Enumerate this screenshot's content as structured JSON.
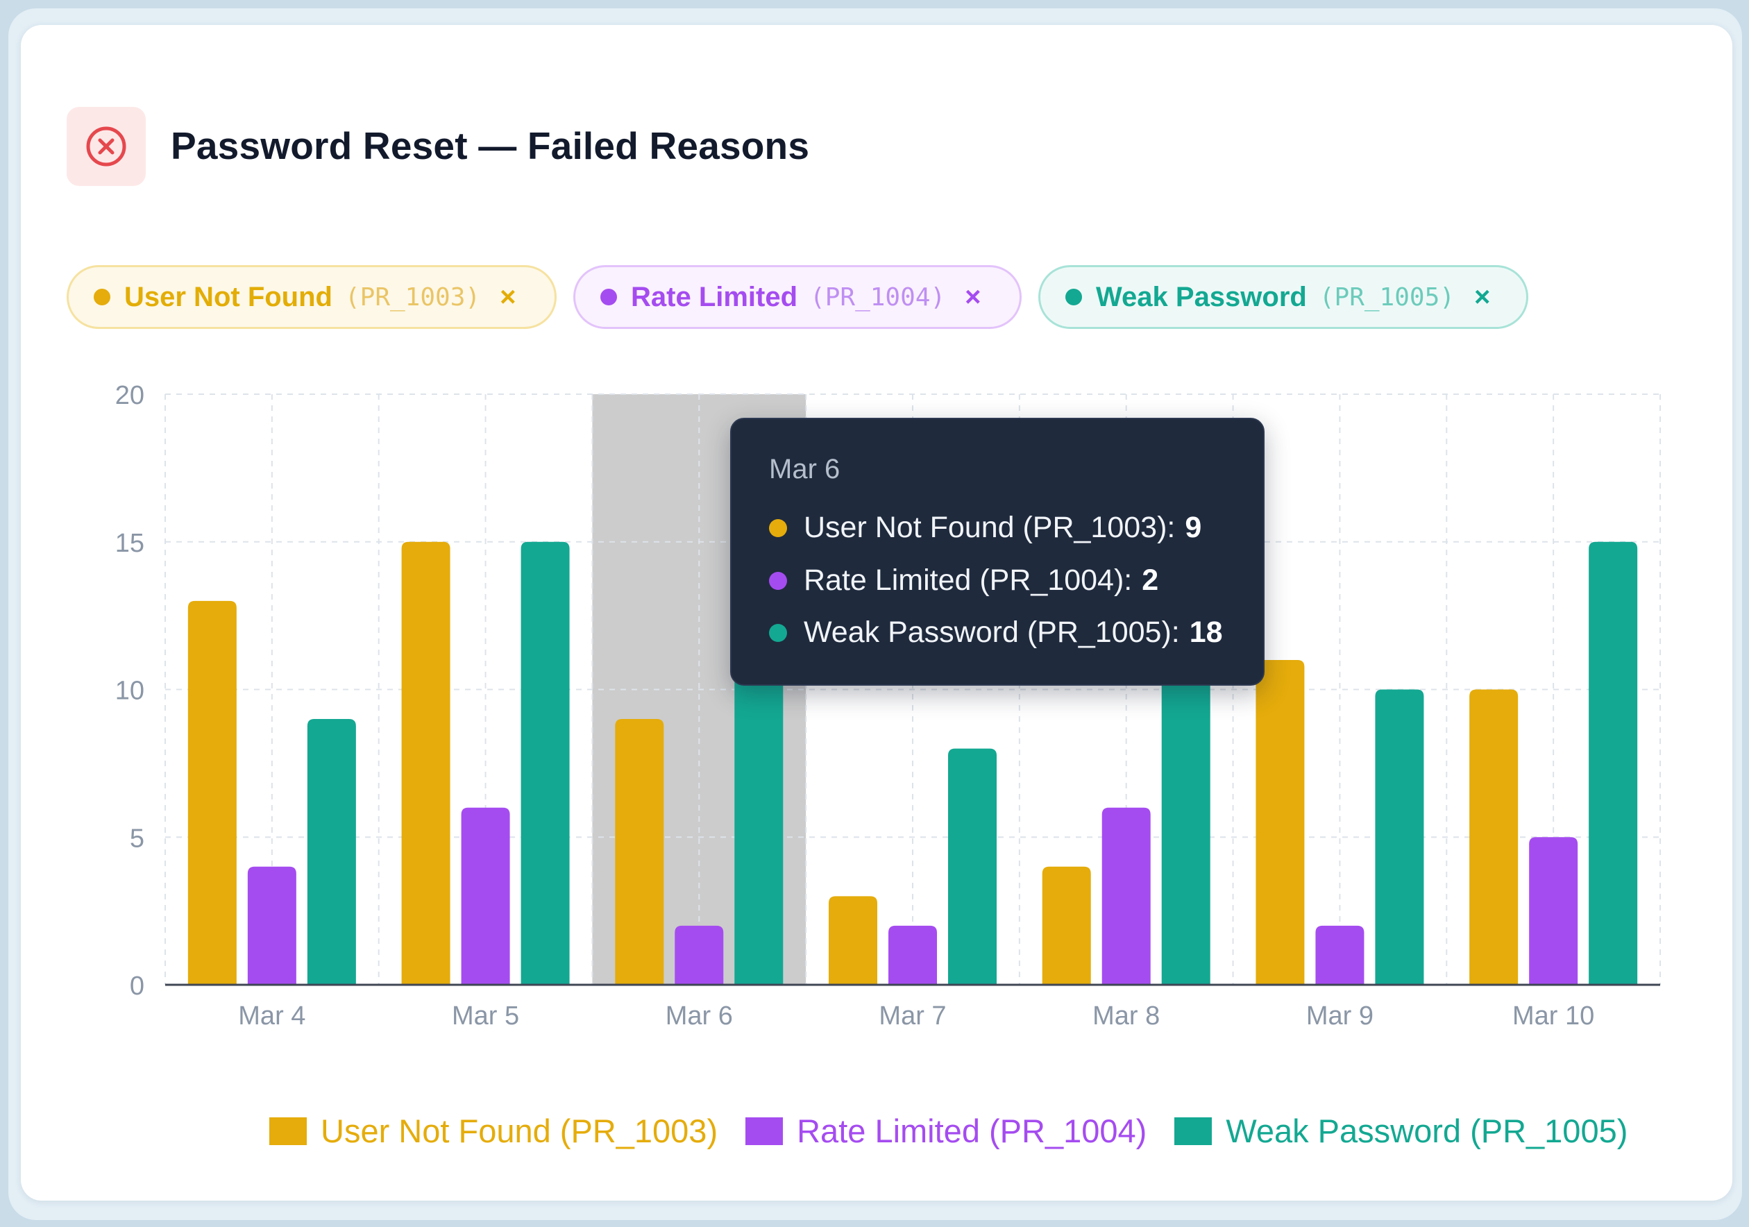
{
  "title": "Password Reset — Failed Reasons",
  "header_icon": "x-circle-icon",
  "filter_chips": [
    {
      "label": "User Not Found",
      "code": "(PR_1003)",
      "remove": "×",
      "color": "#e5ac0b"
    },
    {
      "label": "Rate Limited",
      "code": "(PR_1004)",
      "remove": "×",
      "color": "#a54cf0"
    },
    {
      "label": "Weak Password",
      "code": "(PR_1005)",
      "remove": "×",
      "color": "#13a892"
    }
  ],
  "tooltip": {
    "date": "Mar 6",
    "rows": [
      {
        "name": "User Not Found (PR_1003):",
        "value": "9",
        "color": "#e5ac0b"
      },
      {
        "name": "Rate Limited (PR_1004):",
        "value": "2",
        "color": "#a54cf0"
      },
      {
        "name": "Weak Password (PR_1005):",
        "value": "18",
        "color": "#13a892"
      }
    ]
  },
  "chart_data": {
    "type": "bar",
    "categories": [
      "Mar 4",
      "Mar 5",
      "Mar 6",
      "Mar 7",
      "Mar 8",
      "Mar 9",
      "Mar 10"
    ],
    "series": [
      {
        "name": "User Not Found (PR_1003)",
        "color": "#e5ac0b",
        "values": [
          13,
          15,
          9,
          3,
          4,
          11,
          10
        ]
      },
      {
        "name": "Rate Limited (PR_1004)",
        "color": "#a54cf0",
        "values": [
          4,
          6,
          2,
          2,
          6,
          2,
          5
        ]
      },
      {
        "name": "Weak Password (PR_1005)",
        "color": "#13a892",
        "values": [
          9,
          15,
          18,
          8,
          18,
          10,
          15
        ]
      }
    ],
    "ylim": [
      0,
      20
    ],
    "yticks": [
      0,
      5,
      10,
      15,
      20
    ],
    "grid": true,
    "highlighted_category": "Mar 6",
    "legend_position": "bottom"
  }
}
